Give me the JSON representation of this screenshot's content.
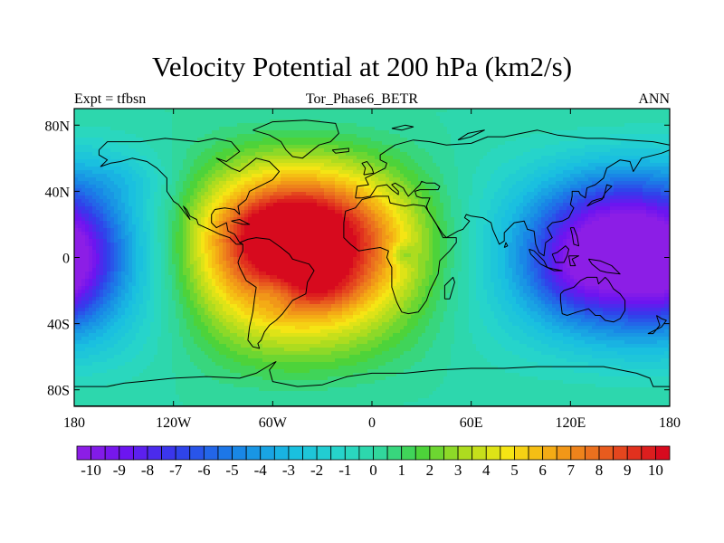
{
  "chart_data": {
    "type": "heatmap",
    "title": "Velocity Potential at 200 hPa (km2/s)",
    "subtitle_left": "Expt = tfbsn",
    "subtitle_center": "Tor_Phase6_BETR",
    "subtitle_right": "ANN",
    "x_ticks": [
      {
        "value": -180,
        "label": "180"
      },
      {
        "value": -120,
        "label": "120W"
      },
      {
        "value": -60,
        "label": "60W"
      },
      {
        "value": 0,
        "label": "0"
      },
      {
        "value": 60,
        "label": "60E"
      },
      {
        "value": 120,
        "label": "120E"
      },
      {
        "value": 180,
        "label": "180"
      }
    ],
    "y_ticks": [
      {
        "value": 80,
        "label": "80N"
      },
      {
        "value": 40,
        "label": "40N"
      },
      {
        "value": 0,
        "label": "0"
      },
      {
        "value": -40,
        "label": "40S"
      },
      {
        "value": -80,
        "label": "80S"
      }
    ],
    "xlim": [
      -180,
      180
    ],
    "ylim": [
      -90,
      90
    ],
    "colorbar": {
      "min": -10.5,
      "max": 10.5,
      "step": 0.5,
      "labels": [
        "-10",
        "-9",
        "-8",
        "-7",
        "-6",
        "-5",
        "-4",
        "-3",
        "-2",
        "-1",
        "0",
        "1",
        "2",
        "3",
        "4",
        "5",
        "6",
        "7",
        "8",
        "9",
        "10"
      ],
      "label_values": [
        -10,
        -9,
        -8,
        -7,
        -6,
        -5,
        -4,
        -3,
        -2,
        -1,
        0,
        1,
        2,
        3,
        4,
        5,
        6,
        7,
        8,
        9,
        10
      ]
    },
    "field_centers": [
      {
        "name": "Atlantic / tropical America maximum",
        "lon": -40,
        "lat": 8,
        "value": 10.2
      },
      {
        "name": "Western Pacific / Maritime Continent minimum",
        "lon": 150,
        "lat": 5,
        "value": -10.2
      },
      {
        "name": "Eastern Pacific minimum",
        "lon": -175,
        "lat": -5,
        "value": -9.0
      }
    ]
  }
}
